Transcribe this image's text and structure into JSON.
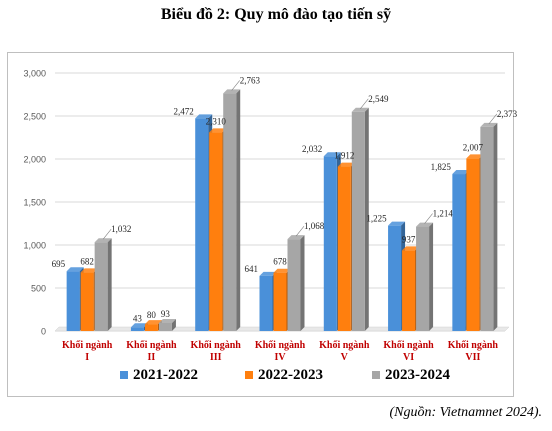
{
  "title": "Biểu đồ 2: Quy mô đào tạo tiến sỹ",
  "source": "(Nguồn: Vietnamnet 2024).",
  "chart_data": {
    "type": "bar",
    "categories": [
      [
        "Khối ngành",
        "I"
      ],
      [
        "Khối ngành",
        "II"
      ],
      [
        "Khối ngành",
        "III"
      ],
      [
        "Khối ngành",
        "IV"
      ],
      [
        "Khối ngành",
        "V"
      ],
      [
        "Khối ngành",
        "VI"
      ],
      [
        "Khối ngành",
        "VII"
      ]
    ],
    "series": [
      {
        "name": "2021-2022",
        "color": "#4a90d9",
        "values": [
          695,
          43,
          2472,
          641,
          2032,
          1225,
          1825
        ]
      },
      {
        "name": "2022-2023",
        "color": "#ff7f0e",
        "values": [
          682,
          80,
          2310,
          678,
          1912,
          937,
          2007
        ]
      },
      {
        "name": "2023-2024",
        "color": "#a6a6a6",
        "values": [
          1032,
          93,
          2763,
          1068,
          2549,
          1214,
          2373
        ]
      }
    ],
    "yticks": [
      "0",
      "500",
      "1,000",
      "1,500",
      "2,000",
      "2,500",
      "3,000"
    ],
    "ylim": [
      0,
      3000
    ],
    "category_label_color": "#c00000",
    "grid": true,
    "legend_position": "bottom"
  }
}
